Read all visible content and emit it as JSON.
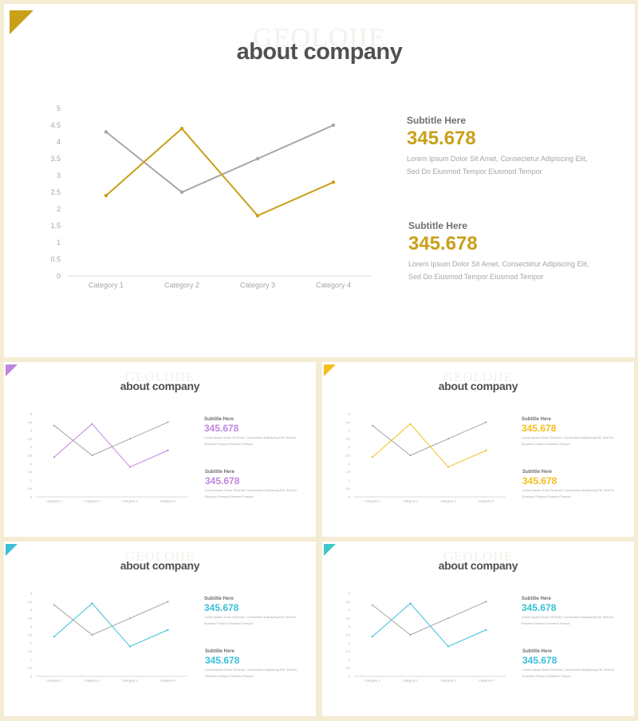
{
  "watermark": "GEOLOIIE",
  "title": "about company",
  "colors": {
    "gray_series": "#a6a6a6",
    "big_accent": "#c9a018",
    "small_accents": [
      "#c186e0",
      "#f2c01e",
      "#38bfd9",
      "#38bfd9"
    ],
    "corner_colors": [
      "#c9a018",
      "#c186e0",
      "#f2c01e",
      "#38bfd9",
      "#3fc7c7"
    ]
  },
  "panels": [
    {
      "subtitle": "Subtitle  Here",
      "number": "345.678",
      "text": "Lorem Ipsum Dolor Sit Amet, Consectetur Adipiscing Elit, Sed Do Eiusmod Tempor Eiusmod Tempor"
    },
    {
      "subtitle": "Subtitle  Here",
      "number": "345.678",
      "text": "Lorem Ipsum Dolor Sit Amet, Consectetur Adipiscing Elit, Sed Do Eiusmod Tempor Eiusmod Tempor"
    }
  ],
  "small_panels": [
    {
      "subtitle": "Subtitle Here",
      "number": "345.678",
      "text": "Lorem Ipsum Dolor Sit Amet, Consectetur Adipiscing Elit, Sed Do Eiusmod Tempor Eiusmod Tempor"
    },
    {
      "subtitle": "Subtitle Here",
      "number": "345.678",
      "text": "Lorem Ipsum Dolor Sit Amet, Consectetur Adipiscing Elit, Sed Do Eiusmod Tempor Eiusmod Tempor"
    }
  ],
  "chart_data": {
    "type": "line",
    "categories": [
      "Category 1",
      "Category 2",
      "Category 3",
      "Category 4"
    ],
    "series": [
      {
        "values": [
          4.3,
          2.5,
          3.5,
          4.5
        ]
      },
      {
        "values": [
          2.4,
          4.4,
          1.8,
          2.8
        ]
      }
    ],
    "ylim": [
      0,
      5
    ],
    "yticks": [
      "0",
      "0.5",
      "1",
      "1.5",
      "2",
      "2.5",
      "3",
      "3.5",
      "4",
      "4.5",
      "5"
    ],
    "grid": false,
    "legend": "none"
  }
}
